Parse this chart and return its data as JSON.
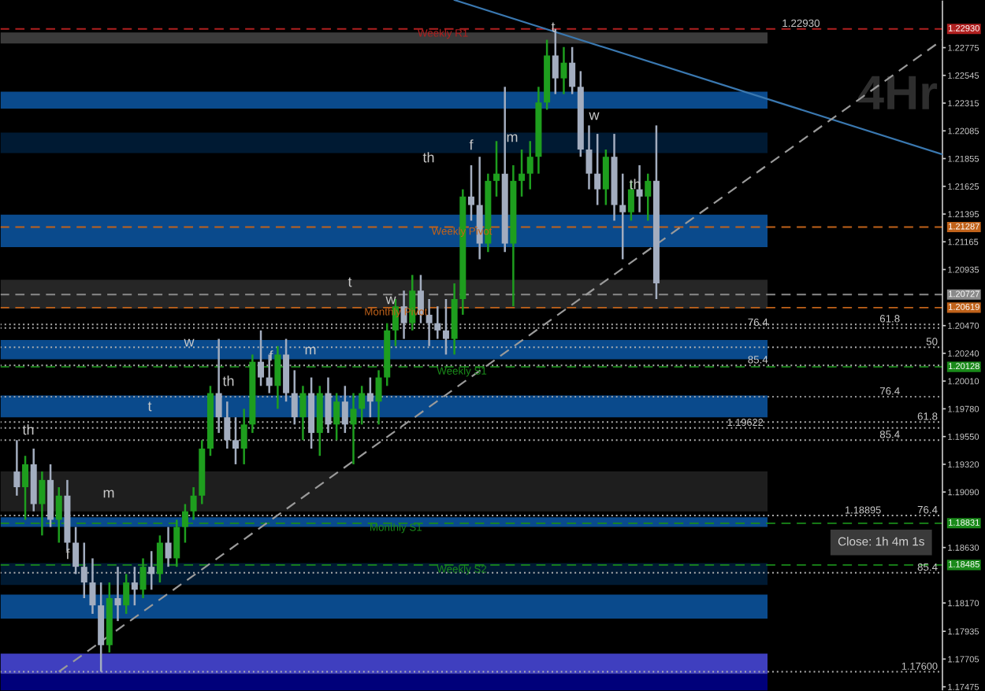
{
  "chart_data": {
    "type": "candlestick",
    "categories": [
      null,
      null,
      null,
      null,
      null,
      null,
      null,
      null,
      null,
      null,
      null,
      null,
      null,
      null,
      null,
      null,
      null,
      null,
      null,
      null,
      null,
      null,
      null,
      null,
      null,
      null,
      null,
      null,
      null,
      null,
      null,
      null,
      null,
      null,
      null,
      null,
      null,
      null,
      null,
      null,
      null,
      null,
      null,
      null,
      null,
      null,
      null,
      null,
      null,
      null,
      null,
      null,
      null,
      null,
      null,
      null,
      null,
      null,
      null,
      null,
      null,
      null,
      null,
      null,
      null,
      null,
      null,
      null,
      null,
      null,
      null,
      null,
      null,
      null,
      null,
      null,
      null,
      null,
      null,
      null,
      null,
      null,
      null,
      null,
      null,
      null,
      null,
      null,
      null,
      null,
      null,
      null,
      null,
      null,
      null,
      null,
      null,
      null,
      null,
      null,
      null,
      null,
      null,
      null,
      null,
      null,
      null,
      null,
      null,
      null,
      null,
      null,
      null
    ],
    "ohlc": [
      null,
      null,
      [
        1.1926,
        1.1952,
        1.1906,
        1.1913
      ],
      [
        1.1913,
        1.1939,
        1.1886,
        1.1932
      ],
      [
        1.1932,
        1.1945,
        1.1893,
        1.1899
      ],
      [
        1.1899,
        1.1926,
        1.1873,
        1.1919
      ],
      [
        1.1919,
        1.1932,
        1.188,
        1.1886
      ],
      [
        1.1886,
        1.1913,
        1.1867,
        1.1906
      ],
      [
        1.1906,
        1.1919,
        1.186,
        1.1867
      ],
      [
        1.1867,
        1.188,
        1.1841,
        1.1847
      ],
      [
        1.1847,
        1.1867,
        1.1821,
        1.1834
      ],
      [
        1.1834,
        1.1854,
        1.1808,
        1.1815
      ],
      [
        1.1815,
        1.1834,
        1.176,
        1.1782
      ],
      [
        1.1782,
        1.1834,
        1.1776,
        1.1821
      ],
      [
        1.1821,
        1.1847,
        1.1802,
        1.1815
      ],
      [
        1.1815,
        1.1841,
        1.1808,
        1.1834
      ],
      [
        1.1834,
        1.1847,
        1.1815,
        1.1828
      ],
      [
        1.1828,
        1.1854,
        1.1821,
        1.1847
      ],
      [
        1.1847,
        1.186,
        1.1828,
        1.1841
      ],
      [
        1.1841,
        1.1873,
        1.1834,
        1.1867
      ],
      [
        1.1867,
        1.188,
        1.1847,
        1.1854
      ],
      [
        1.1854,
        1.1886,
        1.1847,
        1.188
      ],
      [
        1.188,
        1.1899,
        1.1867,
        1.1893
      ],
      [
        1.1893,
        1.1913,
        1.1886,
        1.1906
      ],
      [
        1.1906,
        1.1952,
        1.1899,
        1.1945
      ],
      [
        1.1945,
        1.1997,
        1.1939,
        1.1991
      ],
      [
        1.1991,
        1.2036,
        1.1958,
        1.1971
      ],
      [
        1.1971,
        1.1984,
        1.1945,
        1.1952
      ],
      [
        1.1952,
        1.1971,
        1.1932,
        1.1945
      ],
      [
        1.1945,
        1.1978,
        1.1932,
        1.1965
      ],
      [
        1.1965,
        1.2023,
        1.1958,
        1.2017
      ],
      [
        1.2017,
        1.2043,
        1.1997,
        1.2004
      ],
      [
        1.2004,
        1.2023,
        1.1991,
        1.1997
      ],
      [
        1.1997,
        1.203,
        1.1978,
        1.2023
      ],
      [
        1.2023,
        1.2036,
        1.1984,
        1.1991
      ],
      [
        1.1991,
        1.201,
        1.1965,
        1.1971
      ],
      [
        1.1971,
        1.1997,
        1.1952,
        1.1991
      ],
      [
        1.1991,
        1.2004,
        1.1945,
        1.1958
      ],
      [
        1.1958,
        1.1997,
        1.1939,
        1.1991
      ],
      [
        1.1991,
        1.2004,
        1.1958,
        1.1965
      ],
      [
        1.1965,
        1.1991,
        1.1952,
        1.1984
      ],
      [
        1.1984,
        1.1997,
        1.1958,
        1.1965
      ],
      [
        1.1965,
        1.1991,
        1.1932,
        1.1978
      ],
      [
        1.1978,
        1.1997,
        1.1965,
        1.1991
      ],
      [
        1.1991,
        1.2004,
        1.1971,
        1.1984
      ],
      [
        1.1984,
        1.201,
        1.1965,
        1.2004
      ],
      [
        1.2004,
        1.2049,
        1.1997,
        1.2043
      ],
      [
        1.2043,
        1.2069,
        1.203,
        1.2063
      ],
      [
        1.2063,
        1.2076,
        1.2036,
        1.2049
      ],
      [
        1.2049,
        1.2089,
        1.2043,
        1.2076
      ],
      [
        1.2076,
        1.2089,
        1.2049,
        1.2056
      ],
      [
        1.2056,
        1.2069,
        1.203,
        1.2049
      ],
      [
        1.2049,
        1.2063,
        1.2036,
        1.2043
      ],
      [
        1.2043,
        1.2069,
        1.2023,
        1.2036
      ],
      [
        1.2036,
        1.2082,
        1.2023,
        1.2069
      ],
      [
        1.2069,
        1.216,
        1.2056,
        1.2154
      ],
      [
        1.2154,
        1.218,
        1.2134,
        1.2147
      ],
      [
        1.2147,
        1.2187,
        1.2102,
        1.2115
      ],
      [
        1.2115,
        1.2173,
        1.2108,
        1.2167
      ],
      [
        1.2167,
        1.22,
        1.2154,
        1.2173
      ],
      [
        1.2173,
        1.2245,
        1.2108,
        1.2115
      ],
      [
        1.2115,
        1.218,
        1.2063,
        1.2167
      ],
      [
        1.2167,
        1.2193,
        1.2154,
        1.2173
      ],
      [
        1.2173,
        1.22,
        1.216,
        1.2187
      ],
      [
        1.2187,
        1.2245,
        1.2173,
        1.2232
      ],
      [
        1.2232,
        1.2284,
        1.2226,
        1.2271
      ],
      [
        1.2271,
        1.2293,
        1.2239,
        1.2252
      ],
      [
        1.2252,
        1.2278,
        1.2239,
        1.2265
      ],
      [
        1.2265,
        1.2278,
        1.2239,
        1.2245
      ],
      [
        1.2245,
        1.2258,
        1.2187,
        1.2193
      ],
      [
        1.2193,
        1.2213,
        1.216,
        1.2173
      ],
      [
        1.2173,
        1.2206,
        1.2147,
        1.216
      ],
      [
        1.216,
        1.2193,
        1.2147,
        1.2187
      ],
      [
        1.2187,
        1.2206,
        1.2134,
        1.2147
      ],
      [
        1.2147,
        1.2173,
        1.2102,
        1.2141
      ],
      [
        1.2141,
        1.2167,
        1.2134,
        1.216
      ],
      [
        1.216,
        1.218,
        1.2141,
        1.2154
      ],
      [
        1.2154,
        1.2173,
        1.2134,
        1.2167
      ],
      [
        1.2167,
        1.2213,
        1.2069,
        1.2082
      ],
      null,
      null,
      null,
      null,
      null,
      null,
      null,
      null,
      null,
      null,
      null,
      null,
      null,
      null,
      null,
      null,
      null,
      null,
      null,
      null,
      null,
      null,
      null,
      null,
      null,
      null,
      null,
      null,
      null,
      null,
      null,
      null,
      null,
      null
    ],
    "series": [
      {
        "type": "line",
        "color": "#3a78b0",
        "line_style": "solid",
        "values": [
          null,
          null,
          null,
          null,
          null,
          null,
          null,
          null,
          null,
          null,
          null,
          null,
          null,
          null,
          null,
          null,
          null,
          null,
          null,
          null,
          null,
          null,
          null,
          null,
          null,
          null,
          null,
          null,
          null,
          null,
          null,
          null,
          null,
          null,
          null,
          null,
          null,
          null,
          null,
          null,
          null,
          null,
          null,
          null,
          null,
          null,
          null,
          null,
          null,
          null,
          null,
          null,
          null,
          null,
          1.2317,
          null,
          null,
          null,
          null,
          null,
          null,
          null,
          null,
          null,
          null,
          null,
          null,
          null,
          null,
          null,
          null,
          null,
          null,
          null,
          null,
          null,
          null,
          null,
          null,
          null,
          null,
          null,
          null,
          null,
          null,
          null,
          null,
          null,
          null,
          null,
          null,
          null,
          null,
          null,
          null,
          null,
          null,
          null,
          null,
          null,
          null,
          null,
          null,
          null,
          null,
          null,
          null,
          null,
          null,
          null,
          null,
          null,
          1.2189
        ]
      },
      {
        "type": "line",
        "color": "#9a9a9a",
        "line_style": "dashed",
        "values": [
          null,
          null,
          null,
          null,
          null,
          null,
          null,
          1.176,
          null,
          null,
          null,
          null,
          null,
          null,
          null,
          null,
          null,
          null,
          null,
          null,
          null,
          null,
          null,
          null,
          null,
          null,
          null,
          null,
          null,
          null,
          null,
          null,
          null,
          null,
          null,
          null,
          null,
          null,
          null,
          null,
          null,
          null,
          null,
          null,
          null,
          null,
          null,
          null,
          null,
          null,
          null,
          null,
          null,
          null,
          null,
          null,
          null,
          null,
          null,
          null,
          null,
          null,
          null,
          null,
          null,
          null,
          null,
          null,
          null,
          null,
          null,
          null,
          null,
          null,
          null,
          null,
          null,
          null,
          null,
          null,
          null,
          null,
          null,
          null,
          null,
          null,
          null,
          null,
          null,
          null,
          null,
          null,
          null,
          null,
          null,
          null,
          null,
          null,
          null,
          null,
          null,
          null,
          null,
          null,
          null,
          null,
          null,
          null,
          null,
          null,
          null,
          null,
          1.2284
        ]
      }
    ],
    "ylim": [
      1.1744,
      1.2317
    ],
    "yticks": [
      {
        "value": 1.22775,
        "label": "1.22775"
      },
      {
        "value": 1.22545,
        "label": "1.22545"
      },
      {
        "value": 1.22315,
        "label": "1.22315"
      },
      {
        "value": 1.22085,
        "label": "1.22085"
      },
      {
        "value": 1.21855,
        "label": "1.21855"
      },
      {
        "value": 1.21625,
        "label": "1.21625"
      },
      {
        "value": 1.21395,
        "label": "1.21395"
      },
      {
        "value": 1.21165,
        "label": "1.21165"
      },
      {
        "value": 1.20935,
        "label": "1.20935"
      },
      {
        "value": 1.2047,
        "label": "1.20470"
      },
      {
        "value": 1.2024,
        "label": "1.20240"
      },
      {
        "value": 1.2001,
        "label": "1.20010"
      },
      {
        "value": 1.1978,
        "label": "1.19780"
      },
      {
        "value": 1.1955,
        "label": "1.19550"
      },
      {
        "value": 1.1932,
        "label": "1.19320"
      },
      {
        "value": 1.1909,
        "label": "1.19090"
      },
      {
        "value": 1.1863,
        "label": "1.18630"
      },
      {
        "value": 1.1817,
        "label": "1.18170"
      },
      {
        "value": 1.17935,
        "label": "1.17935"
      },
      {
        "value": 1.17705,
        "label": "1.17705"
      },
      {
        "value": 1.17475,
        "label": "1.17475"
      }
    ],
    "bands": [
      {
        "axis": "y",
        "from": 1.2281,
        "to": 1.229,
        "color": "#3a3a3a"
      },
      {
        "axis": "y",
        "from": 1.2227,
        "to": 1.2241,
        "color": "#0a4a8c"
      },
      {
        "axis": "y",
        "from": 1.219,
        "to": 1.2207,
        "color": "#001a33"
      },
      {
        "axis": "y",
        "from": 1.2112,
        "to": 1.2139,
        "color": "#0a4a8c"
      },
      {
        "axis": "y",
        "from": 1.2061,
        "to": 1.2085,
        "color": "#262626"
      },
      {
        "axis": "y",
        "from": 1.2019,
        "to": 1.2035,
        "color": "#0a4a8c"
      },
      {
        "axis": "y",
        "from": 1.1971,
        "to": 1.1989,
        "color": "#0a4a8c"
      },
      {
        "axis": "y",
        "from": 1.1893,
        "to": 1.1926,
        "color": "#1e1e1e"
      },
      {
        "axis": "y",
        "from": 1.188,
        "to": 1.1888,
        "color": "#0a4a8c"
      },
      {
        "axis": "y",
        "from": 1.1832,
        "to": 1.185,
        "color": "#001a33"
      },
      {
        "axis": "y",
        "from": 1.1804,
        "to": 1.1824,
        "color": "#0a4a8c"
      },
      {
        "axis": "y",
        "from": 1.1758,
        "to": 1.1775,
        "color": "#3f3fbf"
      },
      {
        "axis": "y",
        "from": 1.1744,
        "to": 1.1758,
        "color": "#00007a"
      }
    ],
    "ref_lines": [
      {
        "axis": "y",
        "value": 1.2293,
        "label": "1.22930",
        "color": "#b02020",
        "line_style": "dashed"
      },
      {
        "axis": "y",
        "value": 1.21287,
        "label": "1.21287",
        "color": "#c0621a",
        "line_style": "dashed"
      },
      {
        "axis": "y",
        "value": 1.20727,
        "label": "1.20727",
        "color": "#8a8a8a",
        "line_style": "dashed"
      },
      {
        "axis": "y",
        "value": 1.20619,
        "label": "1.20619",
        "color": "#c0621a",
        "line_style": "dashed"
      },
      {
        "axis": "y",
        "value": 1.20128,
        "label": "1.20128",
        "color": "#1a8a1a",
        "line_style": "dashed"
      },
      {
        "axis": "y",
        "value": 1.18831,
        "label": "1.18831",
        "color": "#1a8a1a",
        "line_style": "dashed"
      },
      {
        "axis": "y",
        "value": 1.18485,
        "label": "1.18485",
        "color": "#1a8a1a",
        "line_style": "dashed"
      },
      {
        "axis": "y",
        "value": 1.2048,
        "color": "#b0b0b0",
        "line_style": "dotted"
      },
      {
        "axis": "y",
        "value": 1.2045,
        "color": "#b0b0b0",
        "line_style": "dotted"
      },
      {
        "axis": "y",
        "value": 1.2029,
        "color": "#b0b0b0",
        "line_style": "dotted"
      },
      {
        "axis": "y",
        "value": 1.2014,
        "color": "#b0b0b0",
        "line_style": "dotted"
      },
      {
        "axis": "y",
        "value": 1.1988,
        "color": "#b0b0b0",
        "line_style": "dotted"
      },
      {
        "axis": "y",
        "value": 1.1967,
        "color": "#b0b0b0",
        "line_style": "dotted"
      },
      {
        "axis": "y",
        "value": 1.19622,
        "label": "1.19622",
        "color": "#b0b0b0",
        "line_style": "dotted"
      },
      {
        "axis": "y",
        "value": 1.1952,
        "color": "#b0b0b0",
        "line_style": "dotted"
      },
      {
        "axis": "y",
        "value": 1.18895,
        "label": "1.18895",
        "color": "#b0b0b0",
        "line_style": "dotted"
      },
      {
        "axis": "y",
        "value": 1.1842,
        "color": "#b0b0b0",
        "line_style": "dotted"
      },
      {
        "axis": "y",
        "value": 1.176,
        "label": "1.17600",
        "color": "#b0b0b0",
        "line_style": "dotted"
      }
    ],
    "annotations": [
      {
        "text": "Weekly R1",
        "y": 1.2293
      },
      {
        "text": "Weekly Pivot",
        "y": 1.21287
      },
      {
        "text": "Monthly Pivot",
        "y": 1.20619
      },
      {
        "text": "Weekly S1",
        "y": 1.20128
      },
      {
        "text": "Monthly S1",
        "y": 1.18831
      },
      {
        "text": "Weekly S2",
        "y": 1.18485
      },
      {
        "text": "61.8",
        "y": 1.2048
      },
      {
        "text": "76.4",
        "y": 1.2045
      },
      {
        "text": "50",
        "y": 1.2029
      },
      {
        "text": "85.4",
        "y": 1.2014
      },
      {
        "text": "76.4",
        "y": 1.1988
      },
      {
        "text": "61.8",
        "y": 1.1967
      },
      {
        "text": "85.4",
        "y": 1.1952
      },
      {
        "text": "76.4",
        "y": 1.18895
      },
      {
        "text": "85.4",
        "y": 1.1842
      },
      {
        "text": "1.22930",
        "y": 1.2293
      },
      "th",
      "f",
      "m",
      "t",
      "w",
      "th",
      "f",
      "m",
      "t",
      "w",
      "th",
      "f",
      "m",
      "t",
      "w",
      "th",
      "4Hr",
      "Close: 1h 4m 1s"
    ]
  }
}
